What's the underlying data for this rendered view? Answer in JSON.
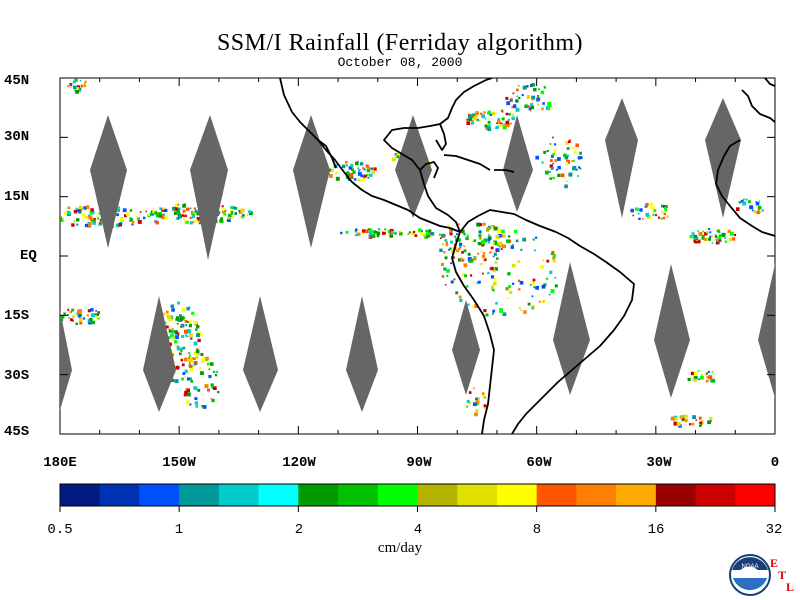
{
  "header": {
    "title": "SSM/I Rainfall (Ferriday algorithm)",
    "date": "October 08, 2000"
  },
  "axes": {
    "lat_labels": [
      "45N",
      "30N",
      "15N",
      "EQ",
      "15S",
      "30S",
      "45S"
    ],
    "lat_values": [
      45,
      30,
      15,
      0,
      -15,
      -30,
      -45
    ],
    "lon_labels": [
      "180E",
      "150W",
      "120W",
      "90W",
      "60W",
      "30W",
      "0"
    ],
    "lon_values": [
      -180,
      -150,
      -120,
      -90,
      -60,
      -30,
      0
    ],
    "lon_range": [
      -180,
      0
    ],
    "lat_range": [
      -45,
      45
    ]
  },
  "colorbar": {
    "units": "cm/day",
    "tick_labels": [
      "0.5",
      "1",
      "2",
      "4",
      "8",
      "16",
      "32"
    ],
    "colors": [
      "#001a80",
      "#0033b3",
      "#0050ff",
      "#009999",
      "#00cccc",
      "#00ffff",
      "#009900",
      "#00c000",
      "#00ff00",
      "#b3b300",
      "#e0e000",
      "#ffff00",
      "#ff5500",
      "#ff8000",
      "#ffaa00",
      "#990000",
      "#cc0000",
      "#ff0000"
    ]
  },
  "logo": {
    "text": "NOAA",
    "letters": [
      "E",
      "T",
      "L"
    ]
  },
  "colors": {
    "gap_swath": "#666666",
    "coast": "#000000"
  }
}
